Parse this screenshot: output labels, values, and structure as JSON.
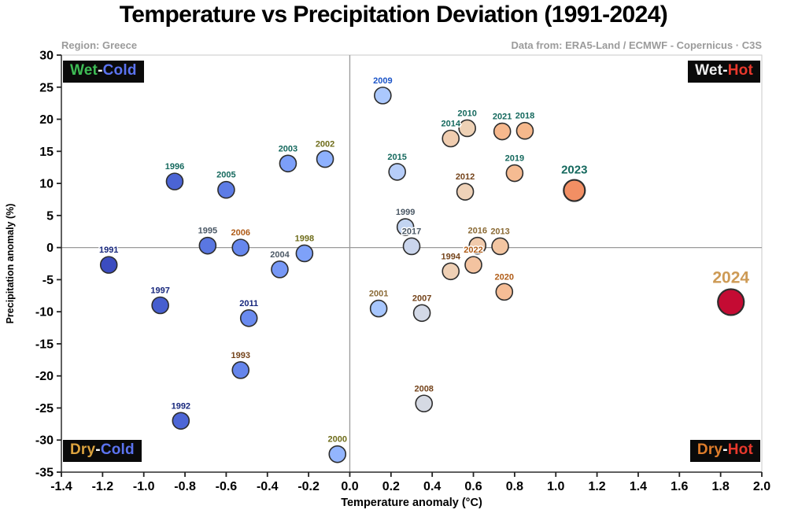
{
  "chart_data": {
    "type": "scatter",
    "title": "Temperature vs Precipitation Deviation (1991-2024)",
    "region": "Region: Greece",
    "source": "Data from: ERA5-Land / ECMWF - Copernicus · C3S",
    "xlabel": "Temperature anomaly (°C)",
    "ylabel": "Precipitation anomaly (%)",
    "xlim": [
      -1.4,
      2.0
    ],
    "ylim": [
      -35,
      30
    ],
    "grid": false,
    "x_tick_labels": [
      "-1.4",
      "-1.2",
      "-1.0",
      "-0.8",
      "-0.6",
      "-0.4",
      "-0.2",
      "0.0",
      "0.2",
      "0.4",
      "0.6",
      "0.8",
      "1.0",
      "1.2",
      "1.4",
      "1.6",
      "1.8",
      "2.0"
    ],
    "y_tick_labels": [
      "30",
      "25",
      "20",
      "15",
      "10",
      "5",
      "0",
      "-5",
      "-10",
      "-15",
      "-20",
      "-25",
      "-30",
      "-35"
    ],
    "quadrant_labels": [
      {
        "position": "top-left",
        "parts": [
          {
            "text": "Wet",
            "color": "#3ebc55"
          },
          {
            "text": "-",
            "color": "#ffffff"
          },
          {
            "text": "Cold",
            "color": "#5b73f0"
          }
        ]
      },
      {
        "position": "top-right",
        "parts": [
          {
            "text": "Wet",
            "color": "#efefef"
          },
          {
            "text": "-",
            "color": "#ffffff"
          },
          {
            "text": "Hot",
            "color": "#e8382c"
          }
        ]
      },
      {
        "position": "bottom-left",
        "parts": [
          {
            "text": "Dry",
            "color": "#dca33e"
          },
          {
            "text": "-",
            "color": "#ffffff"
          },
          {
            "text": "Cold",
            "color": "#5b73f0"
          }
        ]
      },
      {
        "position": "bottom-right",
        "parts": [
          {
            "text": "Dry",
            "color": "#df7d2b"
          },
          {
            "text": "-",
            "color": "#ffffff"
          },
          {
            "text": "Hot",
            "color": "#e8382c"
          }
        ]
      }
    ],
    "points": [
      {
        "year": 1991,
        "x": -1.17,
        "y": -2.7,
        "fill": "#3b4cc0",
        "label_color": "#16267c",
        "r": 10.5,
        "label_size": 11
      },
      {
        "year": 1992,
        "x": -0.82,
        "y": -27.0,
        "fill": "#4d66d6",
        "label_color": "#16267c",
        "r": 10.5,
        "label_size": 11
      },
      {
        "year": 1993,
        "x": -0.53,
        "y": -19.1,
        "fill": "#6585ec",
        "label_color": "#74431a",
        "r": 10.5,
        "label_size": 11
      },
      {
        "year": 1994,
        "x": 0.49,
        "y": -3.7,
        "fill": "#efd0b5",
        "label_color": "#74431a",
        "r": 10.5,
        "label_size": 11
      },
      {
        "year": 1995,
        "x": -0.69,
        "y": 0.3,
        "fill": "#5a77e1",
        "label_color": "#4b5865",
        "r": 10.5,
        "label_size": 11
      },
      {
        "year": 1996,
        "x": -0.85,
        "y": 10.3,
        "fill": "#4b64d4",
        "label_color": "#15695e",
        "r": 10.5,
        "label_size": 11
      },
      {
        "year": 1997,
        "x": -0.92,
        "y": -9.0,
        "fill": "#465ecf",
        "label_color": "#16267c",
        "r": 10.5,
        "label_size": 11
      },
      {
        "year": 1998,
        "x": -0.22,
        "y": -0.9,
        "fill": "#7ea1f9",
        "label_color": "#6f6d1b",
        "r": 10.5,
        "label_size": 11
      },
      {
        "year": 1999,
        "x": 0.27,
        "y": 3.2,
        "fill": "#c2d4f1",
        "label_color": "#4b5865",
        "r": 10.5,
        "label_size": 11
      },
      {
        "year": 2000,
        "x": -0.06,
        "y": -32.2,
        "fill": "#93b5fe",
        "label_color": "#6f6d1b",
        "r": 10.5,
        "label_size": 11
      },
      {
        "year": 2001,
        "x": 0.14,
        "y": -9.5,
        "fill": "#a7c6fd",
        "label_color": "#8a6a35",
        "r": 10.5,
        "label_size": 11
      },
      {
        "year": 2002,
        "x": -0.12,
        "y": 13.8,
        "fill": "#8eb1fe",
        "label_color": "#6f6d1b",
        "r": 10.5,
        "label_size": 11
      },
      {
        "year": 2003,
        "x": -0.3,
        "y": 13.1,
        "fill": "#7c9ff9",
        "label_color": "#15695e",
        "r": 10.5,
        "label_size": 11
      },
      {
        "year": 2004,
        "x": -0.34,
        "y": -3.4,
        "fill": "#7798f6",
        "label_color": "#4b5865",
        "r": 10.5,
        "label_size": 11
      },
      {
        "year": 2005,
        "x": -0.6,
        "y": 9.0,
        "fill": "#5d7ce6",
        "label_color": "#15695e",
        "r": 10.5,
        "label_size": 11
      },
      {
        "year": 2006,
        "x": -0.53,
        "y": 0.0,
        "fill": "#6687ee",
        "label_color": "#b05c17",
        "r": 10.5,
        "label_size": 11
      },
      {
        "year": 2007,
        "x": 0.35,
        "y": -10.2,
        "fill": "#d3d9e7",
        "label_color": "#74431a",
        "r": 10.5,
        "label_size": 11
      },
      {
        "year": 2008,
        "x": 0.36,
        "y": -24.3,
        "fill": "#d5d9e3",
        "label_color": "#74431a",
        "r": 10.5,
        "label_size": 11
      },
      {
        "year": 2009,
        "x": 0.16,
        "y": 23.7,
        "fill": "#abc8fd",
        "label_color": "#1b54c8",
        "r": 10.5,
        "label_size": 11
      },
      {
        "year": 2010,
        "x": 0.57,
        "y": 18.6,
        "fill": "#eed1b5",
        "label_color": "#15695e",
        "r": 10.5,
        "label_size": 11
      },
      {
        "year": 2011,
        "x": -0.49,
        "y": -11.0,
        "fill": "#698aef",
        "label_color": "#16267c",
        "r": 10.5,
        "label_size": 11
      },
      {
        "year": 2012,
        "x": 0.56,
        "y": 8.7,
        "fill": "#efd2b8",
        "label_color": "#74431a",
        "r": 10.5,
        "label_size": 11
      },
      {
        "year": 2013,
        "x": 0.73,
        "y": 0.2,
        "fill": "#f3c6a2",
        "label_color": "#8a6a35",
        "r": 10.5,
        "label_size": 11
      },
      {
        "year": 2014,
        "x": 0.49,
        "y": 17.0,
        "fill": "#f0cdb0",
        "label_color": "#15695e",
        "r": 10.5,
        "label_size": 11
      },
      {
        "year": 2015,
        "x": 0.23,
        "y": 11.8,
        "fill": "#b6cdf9",
        "label_color": "#15695e",
        "r": 10.5,
        "label_size": 11
      },
      {
        "year": 2016,
        "x": 0.62,
        "y": 0.3,
        "fill": "#f1caab",
        "label_color": "#8a6a35",
        "r": 10.5,
        "label_size": 11
      },
      {
        "year": 2017,
        "x": 0.3,
        "y": 0.2,
        "fill": "#cad5ec",
        "label_color": "#4b5865",
        "r": 10.5,
        "label_size": 11
      },
      {
        "year": 2018,
        "x": 0.85,
        "y": 18.2,
        "fill": "#f6b88c",
        "label_color": "#15695e",
        "r": 10.5,
        "label_size": 11
      },
      {
        "year": 2019,
        "x": 0.8,
        "y": 11.6,
        "fill": "#f5bb92",
        "label_color": "#15695e",
        "r": 10.5,
        "label_size": 11
      },
      {
        "year": 2020,
        "x": 0.75,
        "y": -6.9,
        "fill": "#f5bd96",
        "label_color": "#b05c17",
        "r": 10.5,
        "label_size": 11
      },
      {
        "year": 2021,
        "x": 0.74,
        "y": 18.1,
        "fill": "#f6b88d",
        "label_color": "#15695e",
        "r": 10.5,
        "label_size": 11
      },
      {
        "year": 2022,
        "x": 0.6,
        "y": -2.7,
        "fill": "#f3c3a0",
        "label_color": "#b05c17",
        "r": 10.5,
        "label_size": 11
      },
      {
        "year": 2023,
        "x": 1.09,
        "y": 8.9,
        "fill": "#f28f64",
        "label_color": "#15695e",
        "r": 13.5,
        "label_size": 15
      },
      {
        "year": 2024,
        "x": 1.85,
        "y": -8.5,
        "fill": "#c40b33",
        "label_color": "#cd9a55",
        "r": 16.5,
        "label_size": 21
      }
    ]
  }
}
